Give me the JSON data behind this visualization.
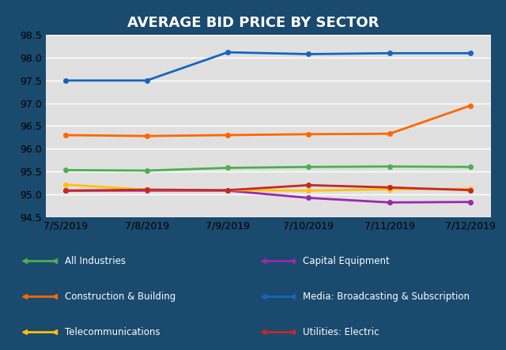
{
  "title": "AVERAGE BID PRICE BY SECTOR",
  "x_labels": [
    "7/5/2019",
    "7/8/2019",
    "7/9/2019",
    "7/10/2019",
    "7/11/2019",
    "7/12/2019"
  ],
  "ylim": [
    94.5,
    98.5
  ],
  "yticks": [
    94.5,
    95.0,
    95.5,
    96.0,
    96.5,
    97.0,
    97.5,
    98.0,
    98.5
  ],
  "series": [
    {
      "name": "All Industries",
      "color": "#4CAF50",
      "values": [
        95.53,
        95.52,
        95.58,
        95.6,
        95.61,
        95.6
      ]
    },
    {
      "name": "Capital Equipment",
      "color": "#9C27B0",
      "values": [
        95.08,
        95.08,
        95.08,
        94.92,
        94.82,
        94.83
      ]
    },
    {
      "name": "Construction & Building",
      "color": "#FF6600",
      "values": [
        96.3,
        96.28,
        96.3,
        96.32,
        96.33,
        96.95
      ]
    },
    {
      "name": "Media: Broadcasting & Subscription",
      "color": "#1565C0",
      "values": [
        97.5,
        97.5,
        98.12,
        98.08,
        98.1,
        98.1
      ]
    },
    {
      "name": "Telecommunications",
      "color": "#FFC107",
      "values": [
        95.21,
        95.1,
        95.09,
        95.08,
        95.11,
        95.12
      ]
    },
    {
      "name": "Utilities: Electric",
      "color": "#C62828",
      "values": [
        95.08,
        95.1,
        95.09,
        95.2,
        95.15,
        95.09
      ]
    }
  ],
  "background_color": "#e0e0e0",
  "title_bg_color": "#1a4a6e",
  "legend_bg_color": "#1a4a6e",
  "title_color": "#ffffff",
  "legend_text_color": "#ffffff",
  "grid_color": "#ffffff",
  "legend_left": [
    {
      "name": "All Industries",
      "color": "#4CAF50"
    },
    {
      "name": "Construction & Building",
      "color": "#FF6600"
    },
    {
      "name": "Telecommunications",
      "color": "#FFC107"
    }
  ],
  "legend_right": [
    {
      "name": "Capital Equipment",
      "color": "#9C27B0"
    },
    {
      "name": "Media: Broadcasting & Subscription",
      "color": "#1565C0"
    },
    {
      "name": "Utilities: Electric",
      "color": "#C62828"
    }
  ]
}
